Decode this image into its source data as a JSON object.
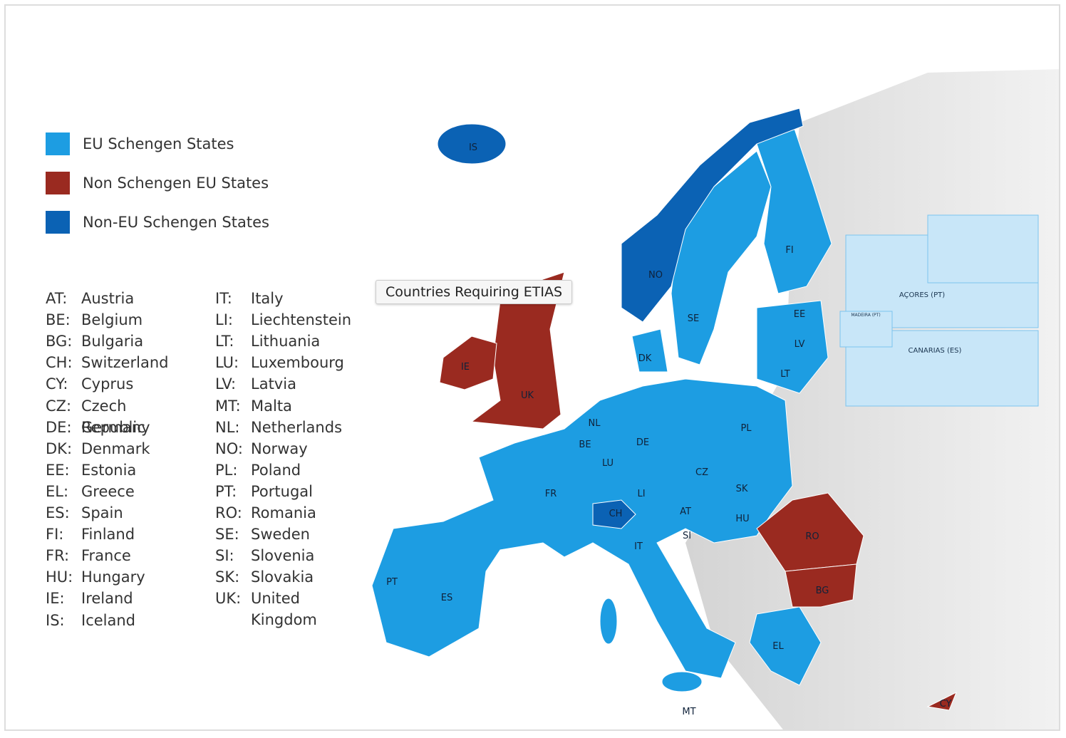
{
  "legend": [
    {
      "label": "EU Schengen States",
      "color": "#1d9de2"
    },
    {
      "label": "Non Schengen EU States",
      "color": "#9a2a20"
    },
    {
      "label": "Non-EU Schengen States",
      "color": "#0b62b4"
    }
  ],
  "codes": [
    {
      "code": "AT:",
      "name": "Austria"
    },
    {
      "code": "BE:",
      "name": "Belgium"
    },
    {
      "code": "BG:",
      "name": "Bulgaria"
    },
    {
      "code": "CH:",
      "name": "Switzerland"
    },
    {
      "code": "CY:",
      "name": "Cyprus"
    },
    {
      "code": "CZ:",
      "name": "Czech Republic"
    },
    {
      "code": "DE:",
      "name": "Germany"
    },
    {
      "code": "DK:",
      "name": "Denmark"
    },
    {
      "code": "EE:",
      "name": "Estonia"
    },
    {
      "code": "EL:",
      "name": "Greece"
    },
    {
      "code": "ES:",
      "name": "Spain"
    },
    {
      "code": "FI:",
      "name": "Finland"
    },
    {
      "code": "FR:",
      "name": "France"
    },
    {
      "code": "HU:",
      "name": "Hungary"
    },
    {
      "code": "IE:",
      "name": "Ireland"
    },
    {
      "code": "IS:",
      "name": "Iceland"
    },
    {
      "code": "IT:",
      "name": "Italy"
    },
    {
      "code": "LI:",
      "name": "Liechtenstein"
    },
    {
      "code": "LT:",
      "name": "Lithuania"
    },
    {
      "code": "LU:",
      "name": "Luxembourg"
    },
    {
      "code": "LV:",
      "name": "Latvia"
    },
    {
      "code": "MT:",
      "name": "Malta"
    },
    {
      "code": "NL:",
      "name": "Netherlands"
    },
    {
      "code": "NO:",
      "name": "Norway"
    },
    {
      "code": "PL:",
      "name": "Poland"
    },
    {
      "code": "PT:",
      "name": "Portugal"
    },
    {
      "code": "RO:",
      "name": "Romania"
    },
    {
      "code": "SE:",
      "name": "Sweden"
    },
    {
      "code": "SI:",
      "name": "Slovenia"
    },
    {
      "code": "SK:",
      "name": "Slovakia"
    },
    {
      "code": "UK:",
      "name": "United Kingdom"
    }
  ],
  "map_labels": [
    "IS",
    "NO",
    "SE",
    "FI",
    "EE",
    "LV",
    "LT",
    "DK",
    "IE",
    "UK",
    "NL",
    "BE",
    "LU",
    "DE",
    "PL",
    "CZ",
    "SK",
    "FR",
    "LI",
    "CH",
    "AT",
    "HU",
    "SI",
    "IT",
    "RO",
    "BG",
    "PT",
    "ES",
    "EL",
    "MT",
    "CY"
  ],
  "insets": [
    "AÇORES (PT)",
    "MADEIRA (PT)",
    "CANARIAS (ES)"
  ],
  "tooltip": "Countries Requiring ETIAS"
}
